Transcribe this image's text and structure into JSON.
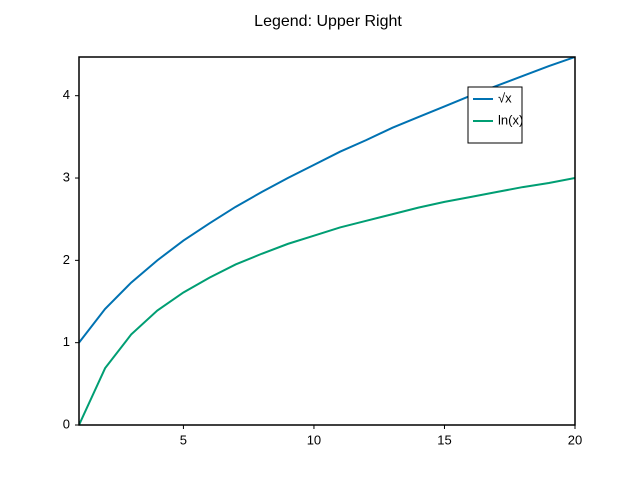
{
  "chart_data": {
    "type": "line",
    "title": "Legend: Upper Right",
    "x": [
      1,
      2,
      3,
      4,
      5,
      6,
      7,
      8,
      9,
      10,
      11,
      12,
      13,
      14,
      15,
      16,
      17,
      18,
      19,
      20
    ],
    "series": [
      {
        "name": "√x",
        "color": "#0072b2",
        "values": [
          1,
          1.41,
          1.73,
          2,
          2.24,
          2.45,
          2.65,
          2.83,
          3,
          3.16,
          3.32,
          3.46,
          3.61,
          3.74,
          3.87,
          4,
          4.12,
          4.24,
          4.36,
          4.47
        ]
      },
      {
        "name": "ln(x)",
        "color": "#009e73",
        "values": [
          0,
          0.69,
          1.1,
          1.39,
          1.61,
          1.79,
          1.95,
          2.08,
          2.2,
          2.3,
          2.4,
          2.48,
          2.56,
          2.64,
          2.71,
          2.77,
          2.83,
          2.89,
          2.94,
          3
        ]
      }
    ],
    "xlim": [
      1,
      20
    ],
    "xticks": [
      5,
      10,
      15,
      20
    ],
    "ylim": [
      0,
      4.47
    ],
    "yticks": [
      0,
      1,
      2,
      3,
      4
    ],
    "legend": "upper right",
    "grid": false
  }
}
